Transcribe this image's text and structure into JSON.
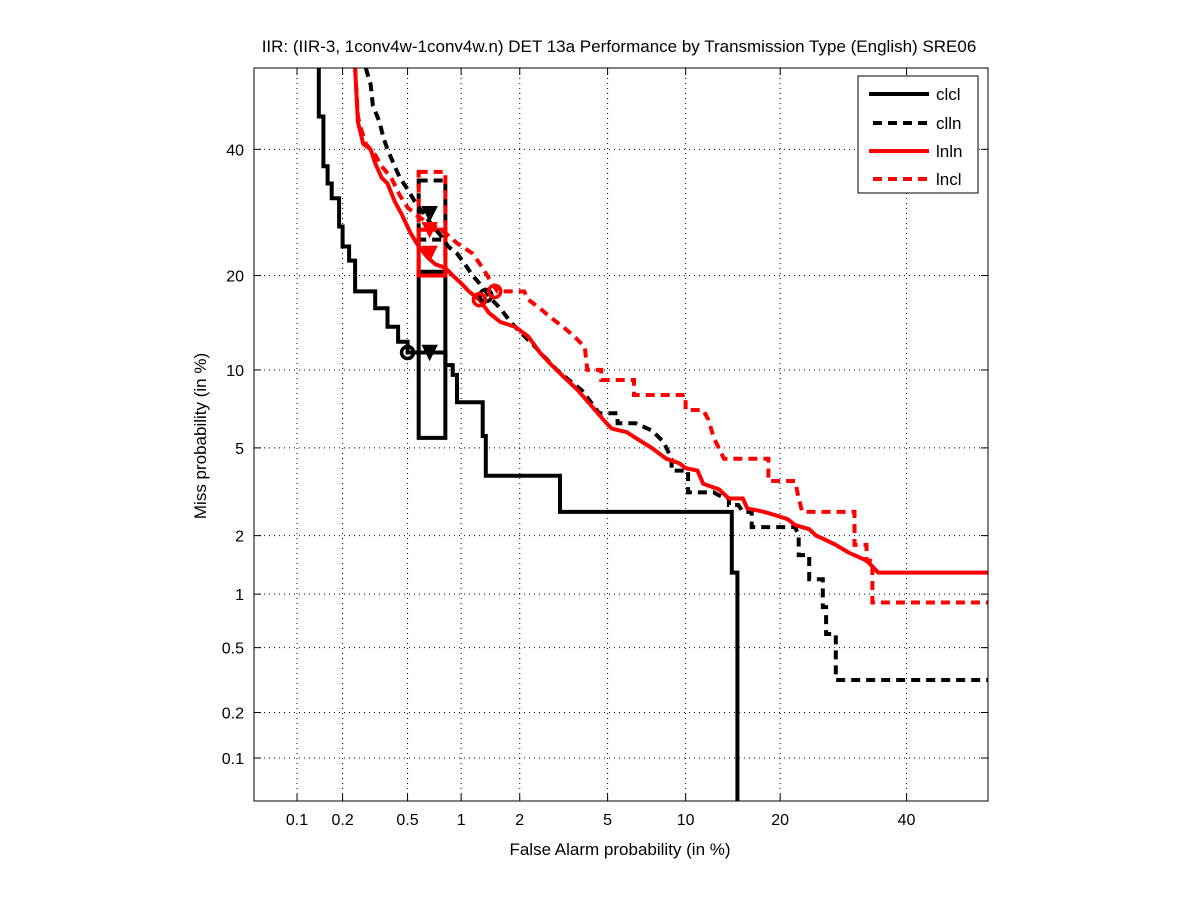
{
  "chart_data": {
    "type": "line",
    "subtype": "DET curve",
    "title": "IIR: (IIR-3, 1conv4w-1conv4w.n) DET 13a Performance by Transmission Type (English) SRE06",
    "xlabel": "False Alarm probability (in %)",
    "ylabel": "Miss probability (in %)",
    "xscale": "probit",
    "yscale": "probit",
    "xlim": [
      0.05,
      55
    ],
    "ylim": [
      0.05,
      55
    ],
    "xticks": [
      0.1,
      0.2,
      0.5,
      1,
      2,
      5,
      10,
      20,
      40
    ],
    "xtick_labels": [
      "0.1",
      "0.2",
      "0.5",
      "1",
      "2",
      "5",
      "10",
      "20",
      "40"
    ],
    "yticks": [
      0.1,
      0.2,
      0.5,
      1,
      2,
      5,
      10,
      20,
      40
    ],
    "ytick_labels": [
      "0.1",
      "0.2",
      "0.5",
      "1",
      "2",
      "5",
      "10",
      "20",
      "40"
    ],
    "grid": true,
    "legend_position": "top-right",
    "series": [
      {
        "name": "clcl",
        "color": "#000000",
        "style": "solid",
        "points": [
          [
            0.14,
            55
          ],
          [
            0.14,
            46
          ],
          [
            0.15,
            46
          ],
          [
            0.15,
            37
          ],
          [
            0.16,
            37
          ],
          [
            0.16,
            34
          ],
          [
            0.17,
            34
          ],
          [
            0.17,
            31.5
          ],
          [
            0.18,
            31.5
          ],
          [
            0.19,
            31.5
          ],
          [
            0.19,
            27
          ],
          [
            0.2,
            27
          ],
          [
            0.2,
            24
          ],
          [
            0.22,
            24
          ],
          [
            0.22,
            22
          ],
          [
            0.24,
            22
          ],
          [
            0.24,
            18
          ],
          [
            0.32,
            18
          ],
          [
            0.32,
            16
          ],
          [
            0.38,
            16
          ],
          [
            0.38,
            14
          ],
          [
            0.44,
            14
          ],
          [
            0.44,
            12.5
          ],
          [
            0.5,
            12.5
          ],
          [
            0.5,
            11.5
          ],
          [
            0.82,
            11.5
          ],
          [
            0.82,
            10.4
          ],
          [
            0.9,
            10.4
          ],
          [
            0.9,
            9.6
          ],
          [
            0.95,
            9.6
          ],
          [
            0.95,
            7.6
          ],
          [
            1.3,
            7.6
          ],
          [
            1.3,
            5.6
          ],
          [
            1.35,
            5.6
          ],
          [
            1.35,
            3.8
          ],
          [
            3.1,
            3.8
          ],
          [
            3.1,
            2.6
          ],
          [
            14.3,
            2.6
          ],
          [
            14.3,
            1.3
          ],
          [
            14.9,
            1.3
          ],
          [
            14.9,
            0.05
          ]
        ]
      },
      {
        "name": "clln",
        "color": "#000000",
        "style": "dashed",
        "points": [
          [
            0.28,
            55
          ],
          [
            0.3,
            52
          ],
          [
            0.31,
            48
          ],
          [
            0.34,
            45
          ],
          [
            0.36,
            42
          ],
          [
            0.38,
            40
          ],
          [
            0.42,
            37
          ],
          [
            0.45,
            35
          ],
          [
            0.5,
            33
          ],
          [
            0.55,
            31
          ],
          [
            0.62,
            29
          ],
          [
            0.7,
            27
          ],
          [
            0.78,
            25.5
          ],
          [
            0.85,
            24
          ],
          [
            0.95,
            23
          ],
          [
            1.05,
            21.5
          ],
          [
            1.15,
            20
          ],
          [
            1.25,
            19
          ],
          [
            1.35,
            18
          ],
          [
            1.45,
            17
          ],
          [
            1.6,
            16
          ],
          [
            1.8,
            14.5
          ],
          [
            2,
            13.5
          ],
          [
            2.3,
            12.3
          ],
          [
            2.6,
            11.2
          ],
          [
            3,
            10
          ],
          [
            3.4,
            9.2
          ],
          [
            3.9,
            8.4
          ],
          [
            4.3,
            7.5
          ],
          [
            4.6,
            6.9
          ],
          [
            5.5,
            6.9
          ],
          [
            5.5,
            6.3
          ],
          [
            6.5,
            6.3
          ],
          [
            7.5,
            5.9
          ],
          [
            8.3,
            5.3
          ],
          [
            8.9,
            4.5
          ],
          [
            8.9,
            4.0
          ],
          [
            9.5,
            4.0
          ],
          [
            10.2,
            4.0
          ],
          [
            10.2,
            3.2
          ],
          [
            12.5,
            3.2
          ],
          [
            13,
            3.1
          ],
          [
            14,
            3.0
          ],
          [
            14,
            2.8
          ],
          [
            15,
            2.8
          ],
          [
            15.5,
            2.6
          ],
          [
            16.5,
            2.6
          ],
          [
            16.5,
            2.2
          ],
          [
            20,
            2.2
          ],
          [
            22,
            2.2
          ],
          [
            22.5,
            2.0
          ],
          [
            22.5,
            1.6
          ],
          [
            24,
            1.6
          ],
          [
            24,
            1.2
          ],
          [
            26,
            1.2
          ],
          [
            26,
            0.85
          ],
          [
            26.5,
            0.85
          ],
          [
            26.5,
            0.6
          ],
          [
            28,
            0.6
          ],
          [
            28,
            0.32
          ],
          [
            55,
            0.32
          ]
        ]
      },
      {
        "name": "lnln",
        "color": "#ff0000",
        "style": "solid",
        "points": [
          [
            0.24,
            55
          ],
          [
            0.25,
            45
          ],
          [
            0.27,
            41
          ],
          [
            0.3,
            40
          ],
          [
            0.32,
            37.5
          ],
          [
            0.35,
            35
          ],
          [
            0.38,
            34
          ],
          [
            0.42,
            31
          ],
          [
            0.46,
            29
          ],
          [
            0.52,
            26
          ],
          [
            0.58,
            24
          ],
          [
            0.65,
            22.5
          ],
          [
            0.72,
            21.5
          ],
          [
            0.82,
            21
          ],
          [
            0.9,
            20
          ],
          [
            1.0,
            19
          ],
          [
            1.1,
            18
          ],
          [
            1.25,
            17
          ],
          [
            1.4,
            15.5
          ],
          [
            1.6,
            14.5
          ],
          [
            1.9,
            14
          ],
          [
            2.2,
            13
          ],
          [
            2.5,
            11.5
          ],
          [
            2.8,
            10.5
          ],
          [
            3.2,
            9.5
          ],
          [
            3.7,
            8.5
          ],
          [
            4.2,
            7.5
          ],
          [
            4.8,
            6.5
          ],
          [
            5.2,
            6.0
          ],
          [
            6,
            5.8
          ],
          [
            6.5,
            5.5
          ],
          [
            7.5,
            5.0
          ],
          [
            8.5,
            4.5
          ],
          [
            9.5,
            4.3
          ],
          [
            10,
            4.1
          ],
          [
            11,
            4.0
          ],
          [
            11.5,
            3.5
          ],
          [
            13,
            3.3
          ],
          [
            14,
            3.0
          ],
          [
            15.5,
            3.0
          ],
          [
            16,
            2.7
          ],
          [
            18,
            2.6
          ],
          [
            19.5,
            2.5
          ],
          [
            21,
            2.4
          ],
          [
            22,
            2.25
          ],
          [
            24,
            2.15
          ],
          [
            25,
            2.0
          ],
          [
            26.5,
            1.9
          ],
          [
            28,
            1.8
          ],
          [
            30,
            1.65
          ],
          [
            33,
            1.5
          ],
          [
            34,
            1.4
          ],
          [
            35,
            1.3
          ],
          [
            55,
            1.3
          ]
        ]
      },
      {
        "name": "lncl",
        "color": "#ff0000",
        "style": "dashed",
        "points": [
          [
            0.24,
            55
          ],
          [
            0.25,
            46
          ],
          [
            0.26,
            44
          ],
          [
            0.28,
            41
          ],
          [
            0.32,
            39
          ],
          [
            0.35,
            37
          ],
          [
            0.4,
            35
          ],
          [
            0.45,
            32
          ],
          [
            0.5,
            30
          ],
          [
            0.58,
            28.5
          ],
          [
            0.72,
            27
          ],
          [
            0.82,
            26
          ],
          [
            0.95,
            24.5
          ],
          [
            1.15,
            23
          ],
          [
            1.3,
            21
          ],
          [
            1.45,
            19
          ],
          [
            1.55,
            18
          ],
          [
            2.1,
            18
          ],
          [
            2.2,
            17
          ],
          [
            2.5,
            16
          ],
          [
            2.8,
            15
          ],
          [
            3.2,
            14
          ],
          [
            3.6,
            13
          ],
          [
            4,
            12
          ],
          [
            4.1,
            10
          ],
          [
            4.7,
            10
          ],
          [
            4.7,
            9.2
          ],
          [
            6.4,
            9.2
          ],
          [
            6.4,
            8.1
          ],
          [
            10,
            8.1
          ],
          [
            10,
            7.1
          ],
          [
            11.5,
            7.1
          ],
          [
            12,
            6.5
          ],
          [
            12.5,
            5.5
          ],
          [
            13.5,
            4.5
          ],
          [
            18.5,
            4.5
          ],
          [
            18.5,
            3.6
          ],
          [
            22,
            3.6
          ],
          [
            22.5,
            3.0
          ],
          [
            23,
            2.6
          ],
          [
            31,
            2.6
          ],
          [
            31,
            1.8
          ],
          [
            33,
            1.8
          ],
          [
            33,
            1.5
          ],
          [
            34,
            1.5
          ],
          [
            34,
            0.9
          ],
          [
            55,
            0.9
          ]
        ]
      }
    ],
    "markers": [
      {
        "series": "clcl",
        "type": "circle",
        "x": 0.5,
        "y": 11.5,
        "note": "min DCF"
      },
      {
        "series": "clcl",
        "type": "triangle-down",
        "x": 0.67,
        "y": 11.5,
        "note": "actual decision"
      },
      {
        "series": "clln",
        "type": "circle",
        "x": 1.35,
        "y": 17.5,
        "note": "min DCF"
      },
      {
        "series": "clln",
        "type": "triangle-down",
        "x": 0.67,
        "y": 29,
        "note": "actual decision"
      },
      {
        "series": "lnln",
        "type": "circle",
        "x": 1.25,
        "y": 17,
        "note": "min DCF"
      },
      {
        "series": "lnln",
        "type": "triangle-down",
        "x": 0.67,
        "y": 23,
        "note": "actual decision"
      },
      {
        "series": "lncl",
        "type": "circle",
        "x": 1.5,
        "y": 18,
        "note": "min DCF"
      },
      {
        "series": "lncl",
        "type": "triangle-down",
        "x": 0.67,
        "y": 26.5,
        "note": "actual decision"
      }
    ],
    "confidence_boxes": [
      {
        "series": "clcl",
        "color": "#000000",
        "style": "solid",
        "x": [
          0.58,
          0.82
        ],
        "y": [
          5.5,
          20.5
        ]
      },
      {
        "series": "clln",
        "color": "#000000",
        "style": "dashed",
        "x": [
          0.58,
          0.82
        ],
        "y": [
          25,
          34.5
        ]
      },
      {
        "series": "lnln",
        "color": "#ff0000",
        "style": "solid",
        "x": [
          0.58,
          0.82
        ],
        "y": [
          20,
          26.5
        ]
      },
      {
        "series": "lncl",
        "color": "#ff0000",
        "style": "dashed",
        "x": [
          0.58,
          0.82
        ],
        "y": [
          20,
          36
        ]
      }
    ]
  },
  "legend": {
    "entries": [
      {
        "label": "clcl",
        "color": "#000000",
        "style": "solid"
      },
      {
        "label": "clln",
        "color": "#000000",
        "style": "dashed"
      },
      {
        "label": "lnln",
        "color": "#ff0000",
        "style": "solid"
      },
      {
        "label": "lncl",
        "color": "#ff0000",
        "style": "dashed"
      }
    ]
  }
}
